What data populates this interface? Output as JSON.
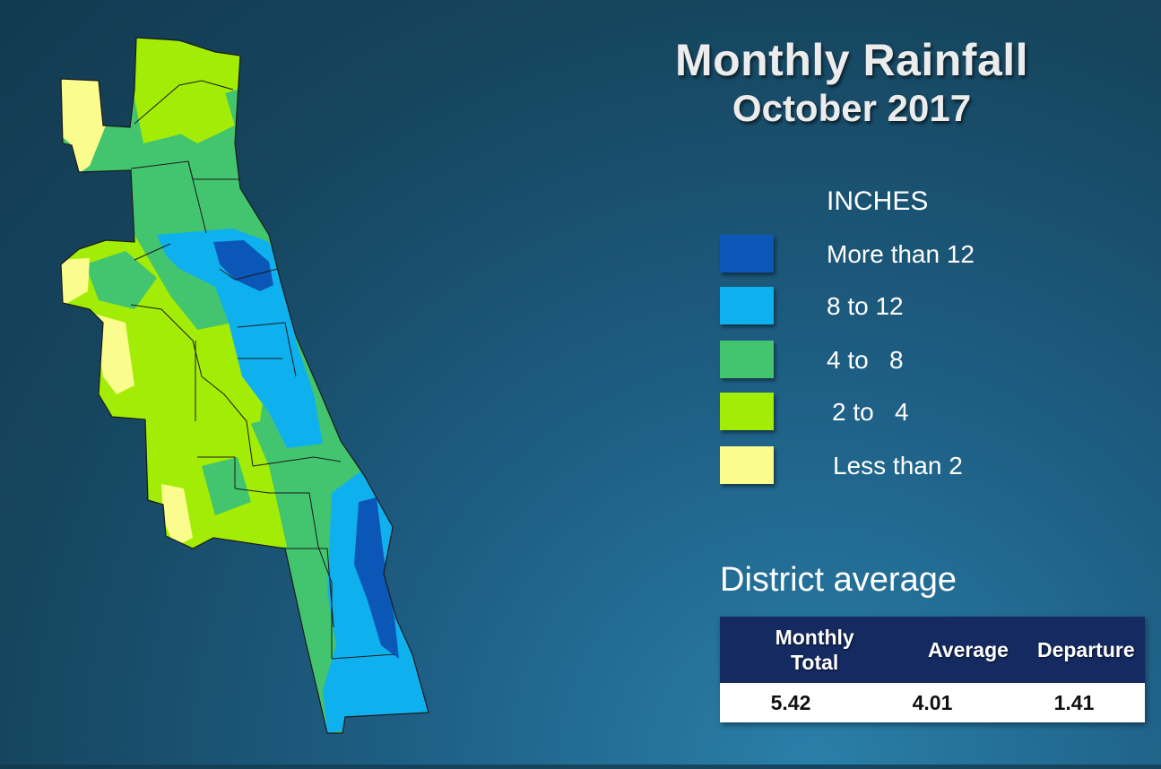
{
  "title": {
    "main": "Monthly Rainfall",
    "sub": "October 2017"
  },
  "legend": {
    "title": "INCHES",
    "items": [
      {
        "label": "More than 12",
        "color": "#0b57b8"
      },
      {
        "label": "8 to 12",
        "color": "#0fb0ee"
      },
      {
        "label": "4 to   8",
        "color": "#43c46e"
      },
      {
        "label": "2 to   4",
        "color": "#a3ec05"
      },
      {
        "label": "Less than 2",
        "color": "#fafc8d"
      }
    ]
  },
  "district": {
    "title": "District average",
    "headers": [
      "Monthly Total",
      "Average",
      "Departure"
    ],
    "values": [
      "5.42",
      "4.01",
      "1.41"
    ]
  }
}
